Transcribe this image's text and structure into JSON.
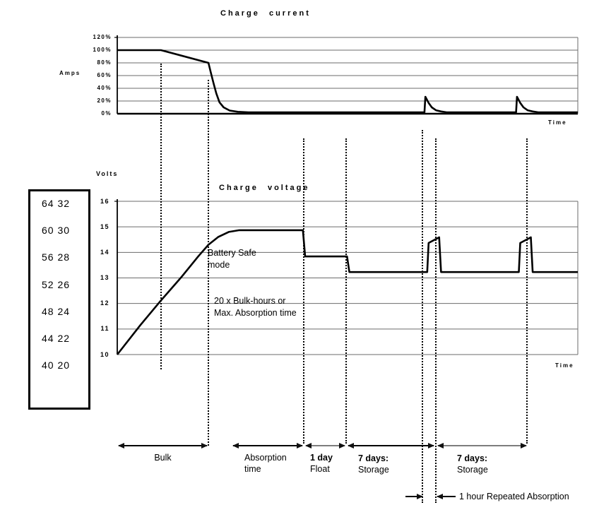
{
  "current_chart": {
    "title": "Charge current",
    "y_axis_label": "Amps",
    "x_axis_label": "Time",
    "y_ticks": [
      "120%",
      "100%",
      "80%",
      "60%",
      "40%",
      "20%",
      "0%"
    ]
  },
  "voltage_chart": {
    "title": "Charge voltage",
    "y_axis_label": "Volts",
    "x_axis_label": "Time",
    "y_ticks": [
      "16",
      "15",
      "14",
      "13",
      "12",
      "11",
      "10"
    ]
  },
  "voltage_scale_box": {
    "rows": [
      "64 32",
      "60 30",
      "56 28",
      "52 26",
      "48 24",
      "44 22",
      "40 20"
    ]
  },
  "annotations": {
    "battery_safe_line1": "Battery Safe",
    "battery_safe_line2": "mode",
    "bulk_hours_line1": "20 x Bulk-hours or",
    "bulk_hours_line2": "Max. Absorption time",
    "repeated_absorption": "1 hour Repeated Absorption"
  },
  "phases": [
    {
      "line1": "Bulk",
      "line2": ""
    },
    {
      "line1": "Absorption",
      "line2": "time"
    },
    {
      "line1": "1 day",
      "line2": "Float"
    },
    {
      "line1": "7 days:",
      "line2": "Storage"
    },
    {
      "line1": "7 days:",
      "line2": "Storage"
    }
  ],
  "chart_data": [
    {
      "type": "line",
      "title": "Charge current",
      "xlabel": "Time",
      "ylabel": "Amps",
      "y_unit": "% of nominal charge current",
      "x_unit": "% of displayed timeline",
      "ylim": [
        0,
        120
      ],
      "yticks": [
        120,
        100,
        80,
        60,
        40,
        20,
        0
      ],
      "grid": true,
      "series": [
        {
          "name": "Charge current",
          "points": [
            [
              0,
              100
            ],
            [
              9.5,
              100
            ],
            [
              19.8,
              80
            ],
            [
              20.3,
              65
            ],
            [
              20.9,
              48
            ],
            [
              21.5,
              32
            ],
            [
              22.2,
              18
            ],
            [
              23.1,
              10
            ],
            [
              24.4,
              5
            ],
            [
              26.2,
              3
            ],
            [
              28.5,
              2.2
            ],
            [
              66.7,
              2.2
            ],
            [
              66.9,
              26.7
            ],
            [
              67.6,
              17
            ],
            [
              68.3,
              10
            ],
            [
              69.2,
              5.5
            ],
            [
              70.3,
              3.5
            ],
            [
              71.5,
              2.2
            ],
            [
              86.6,
              2.2
            ],
            [
              86.8,
              26.7
            ],
            [
              87.5,
              17
            ],
            [
              88.2,
              10
            ],
            [
              89.1,
              5.5
            ],
            [
              90.2,
              3.5
            ],
            [
              91.4,
              2.2
            ],
            [
              100,
              2.2
            ]
          ]
        }
      ]
    },
    {
      "type": "line",
      "title": "Charge voltage",
      "xlabel": "Time",
      "ylabel": "Volts",
      "y_unit": "volts (12 V scale; box shows 48 V / 24 V equivalents)",
      "x_unit": "% of displayed timeline",
      "ylim": [
        10,
        16
      ],
      "yticks": [
        16,
        15,
        14,
        13,
        12,
        11,
        10
      ],
      "grid": true,
      "phase_boundaries_t": [
        9.4,
        19.8,
        40.5,
        49.7,
        66.3,
        69.2,
        89.0
      ],
      "series": [
        {
          "name": "Charge voltage",
          "points": [
            [
              0,
              10.0
            ],
            [
              5,
              11.15
            ],
            [
              9.4,
              12.1
            ],
            [
              14,
              13.05
            ],
            [
              17.6,
              13.85
            ],
            [
              19.8,
              14.3
            ],
            [
              21.9,
              14.6
            ],
            [
              24.2,
              14.8
            ],
            [
              26.5,
              14.87
            ],
            [
              40.3,
              14.87
            ],
            [
              40.8,
              13.84
            ],
            [
              49.9,
              13.84
            ],
            [
              50.4,
              13.23
            ],
            [
              67.3,
              13.23
            ],
            [
              67.6,
              14.37
            ],
            [
              69.9,
              14.59
            ],
            [
              70.3,
              13.23
            ],
            [
              87.2,
              13.23
            ],
            [
              87.5,
              14.37
            ],
            [
              89.8,
              14.59
            ],
            [
              90.2,
              13.23
            ],
            [
              100,
              13.23
            ]
          ]
        }
      ]
    }
  ]
}
